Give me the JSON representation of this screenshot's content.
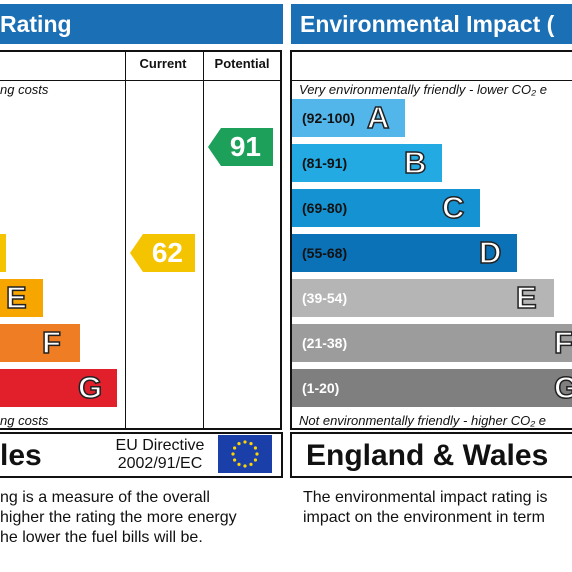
{
  "chart_data": [
    {
      "type": "bar",
      "title": "Rating",
      "columns": [
        "Current",
        "Potential"
      ],
      "top_caption": "ng costs",
      "bottom_caption": "ng costs",
      "bands": [
        {
          "letter": "",
          "color": "#f5c400"
        },
        {
          "letter": "E",
          "color": "#f7a600"
        },
        {
          "letter": "F",
          "color": "#ee7d24"
        },
        {
          "letter": "G",
          "color": "#e1202b"
        }
      ],
      "current": {
        "value": 62,
        "color": "#f5c400"
      },
      "potential": {
        "value": 91,
        "color": "#1da05a"
      },
      "footer_region": "les",
      "directive": [
        "EU Directive",
        "2002/91/EC"
      ],
      "description": [
        "ng is a measure of the overall",
        "higher the rating the more energy",
        "he lower the fuel bills will be."
      ]
    },
    {
      "type": "bar",
      "title": "Environmental Impact (",
      "top_caption": "Very environmentally friendly - lower CO₂ e",
      "bottom_caption": "Not environmentally friendly - higher CO₂ e",
      "bands": [
        {
          "range": "(92-100)",
          "letter": "A",
          "color": "#53b6ea"
        },
        {
          "range": "(81-91)",
          "letter": "B",
          "color": "#24aae2"
        },
        {
          "range": "(69-80)",
          "letter": "C",
          "color": "#1592d2"
        },
        {
          "range": "(55-68)",
          "letter": "D",
          "color": "#0c72b8"
        },
        {
          "range": "(39-54)",
          "letter": "E",
          "color": "#b5b5b5"
        },
        {
          "range": "(21-38)",
          "letter": "F",
          "color": "#9c9c9c"
        },
        {
          "range": "(1-20)",
          "letter": "G",
          "color": "#7f7f7f"
        }
      ],
      "footer_region": "England & Wales",
      "description": [
        "The environmental impact rating is",
        "impact on the environment in term"
      ]
    }
  ]
}
